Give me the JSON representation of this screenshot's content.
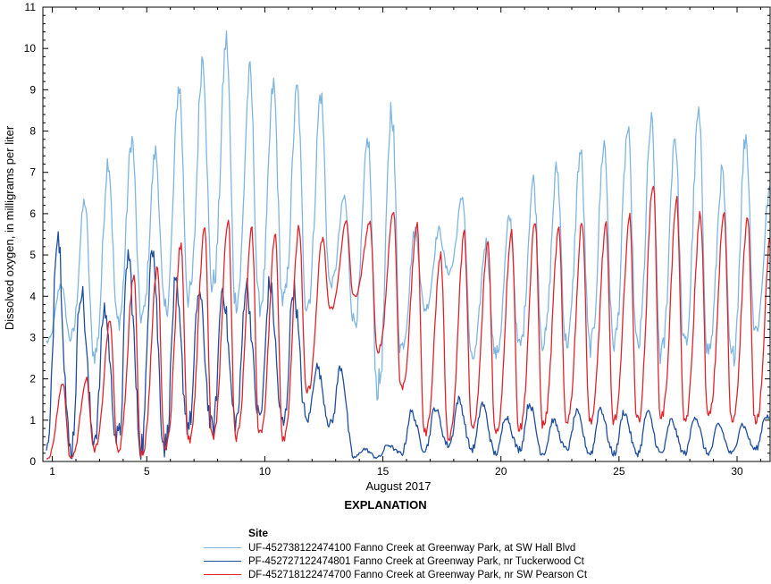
{
  "chart_data": {
    "type": "line",
    "xlabel": "August 2017",
    "ylabel": "Dissolved oxygen, in milligrams per liter",
    "xlim": [
      0.6,
      31.4
    ],
    "ylim": [
      0,
      11
    ],
    "x_ticks": [
      1,
      5,
      10,
      15,
      20,
      25,
      30
    ],
    "y_ticks": [
      0,
      1,
      2,
      3,
      4,
      5,
      6,
      7,
      8,
      9,
      10,
      11
    ],
    "grid": false,
    "legend_title": "Site",
    "explanation_title": "EXPLANATION",
    "series": [
      {
        "name": "UF-452738122474100 Fanno Creek at Greenway Park, at SW Hall Blvd",
        "color": "#7fb6e0",
        "daily_max": [
          4.3,
          6.3,
          7.3,
          7.8,
          7.5,
          9.1,
          9.8,
          10.2,
          9.4,
          9.1,
          9.0,
          8.9,
          6.4,
          7.8,
          8.6,
          5.6,
          5.6,
          6.4,
          5.3,
          5.9,
          6.8,
          7.1,
          7.5,
          7.7,
          8.0,
          8.2,
          7.9,
          8.4,
          7.0,
          7.9,
          6.5,
          8.5
        ],
        "daily_min": [
          2.9,
          3.0,
          2.6,
          3.4,
          3.5,
          3.7,
          4.0,
          4.3,
          3.9,
          3.8,
          3.9,
          3.8,
          4.3,
          3.4,
          1.8,
          2.8,
          3.7,
          4.6,
          2.5,
          2.6,
          2.8,
          2.9,
          2.9,
          2.8,
          2.9,
          2.8,
          2.6,
          2.8,
          2.7,
          2.5,
          3.2,
          3.4
        ]
      },
      {
        "name": "PF-452727122474801 Fanno Creek at Greenway Park, nr Tuckerwood Ct",
        "color": "#1f4e9c",
        "daily_max": [
          5.7,
          4.2,
          3.7,
          5.0,
          5.4,
          4.2,
          4.1,
          4.2,
          4.3,
          4.3,
          4.2,
          2.3,
          2.3,
          0.3,
          0.4,
          1.2,
          1.3,
          1.5,
          1.4,
          1.1,
          1.4,
          1.0,
          1.2,
          1.3,
          1.2,
          1.2,
          1.0,
          1.1,
          0.9,
          0.9,
          1.1,
          1.6
        ],
        "daily_min": [
          0.2,
          0.3,
          0.6,
          0.5,
          0.4,
          0.4,
          0.9,
          0.8,
          1.0,
          1.1,
          0.9,
          1.0,
          0.9,
          0.1,
          0.1,
          0.2,
          0.3,
          0.4,
          0.3,
          0.2,
          0.3,
          0.2,
          0.3,
          0.2,
          0.2,
          0.2,
          0.2,
          0.2,
          0.2,
          0.2,
          0.3,
          0.9
        ]
      },
      {
        "name": "DF-452718122474700 Fanno Creek at Greenway Park, nr SW Pearson Ct",
        "color": "#e0242b",
        "daily_max": [
          1.9,
          2.0,
          3.4,
          4.5,
          4.7,
          5.3,
          5.7,
          5.9,
          5.6,
          5.5,
          5.7,
          5.4,
          5.8,
          5.8,
          6.1,
          5.7,
          5.0,
          5.5,
          5.3,
          5.6,
          5.8,
          5.6,
          5.8,
          5.7,
          5.9,
          6.8,
          6.3,
          6.0,
          6.0,
          5.9,
          5.7,
          3.9
        ],
        "daily_min": [
          0.1,
          0.1,
          0.3,
          0.3,
          0.2,
          0.4,
          0.5,
          0.6,
          0.6,
          0.7,
          0.6,
          1.7,
          3.7,
          4.0,
          2.7,
          1.8,
          0.7,
          0.6,
          0.8,
          0.7,
          0.8,
          0.9,
          1.0,
          1.0,
          1.0,
          1.0,
          1.1,
          1.0,
          1.1,
          1.0,
          1.0,
          1.4
        ]
      }
    ]
  }
}
